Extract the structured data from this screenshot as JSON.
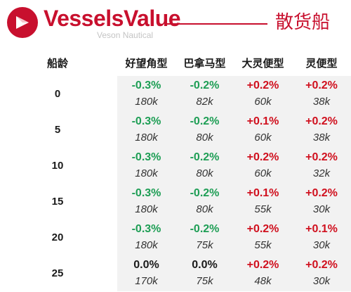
{
  "header": {
    "brand_name": "VesselsValue",
    "brand_subtitle": "Veson Nautical",
    "title": "散货船",
    "colors": {
      "brand_red": "#c8102e"
    },
    "logo_icon": "vesselsvalue-logo-icon"
  },
  "table": {
    "age_header": "船龄",
    "columns": [
      "好望角型",
      "巴拿马型",
      "大灵便型",
      "灵便型"
    ],
    "rows": [
      {
        "age": "0",
        "cells": [
          {
            "change": "-0.3%",
            "value": "180k"
          },
          {
            "change": "-0.2%",
            "value": "82k"
          },
          {
            "change": "+0.2%",
            "value": "60k"
          },
          {
            "change": "+0.2%",
            "value": "38k"
          }
        ]
      },
      {
        "age": "5",
        "cells": [
          {
            "change": "-0.3%",
            "value": "180k"
          },
          {
            "change": "-0.2%",
            "value": "80k"
          },
          {
            "change": "+0.1%",
            "value": "60k"
          },
          {
            "change": "+0.2%",
            "value": "38k"
          }
        ]
      },
      {
        "age": "10",
        "cells": [
          {
            "change": "-0.3%",
            "value": "180k"
          },
          {
            "change": "-0.2%",
            "value": "80k"
          },
          {
            "change": "+0.2%",
            "value": "60k"
          },
          {
            "change": "+0.2%",
            "value": "32k"
          }
        ]
      },
      {
        "age": "15",
        "cells": [
          {
            "change": "-0.3%",
            "value": "180k"
          },
          {
            "change": "-0.2%",
            "value": "80k"
          },
          {
            "change": "+0.1%",
            "value": "55k"
          },
          {
            "change": "+0.2%",
            "value": "30k"
          }
        ]
      },
      {
        "age": "20",
        "cells": [
          {
            "change": "-0.3%",
            "value": "180k"
          },
          {
            "change": "-0.2%",
            "value": "75k"
          },
          {
            "change": "+0.2%",
            "value": "55k"
          },
          {
            "change": "+0.1%",
            "value": "30k"
          }
        ]
      },
      {
        "age": "25",
        "cells": [
          {
            "change": "0.0%",
            "value": "170k"
          },
          {
            "change": "0.0%",
            "value": "75k"
          },
          {
            "change": "+0.2%",
            "value": "48k"
          },
          {
            "change": "+0.2%",
            "value": "30k"
          }
        ]
      }
    ],
    "colors": {
      "negative": "#1e9e55",
      "positive": "#d0101e",
      "neutral": "#1a1a1a",
      "band": "#f2f2f2"
    }
  }
}
